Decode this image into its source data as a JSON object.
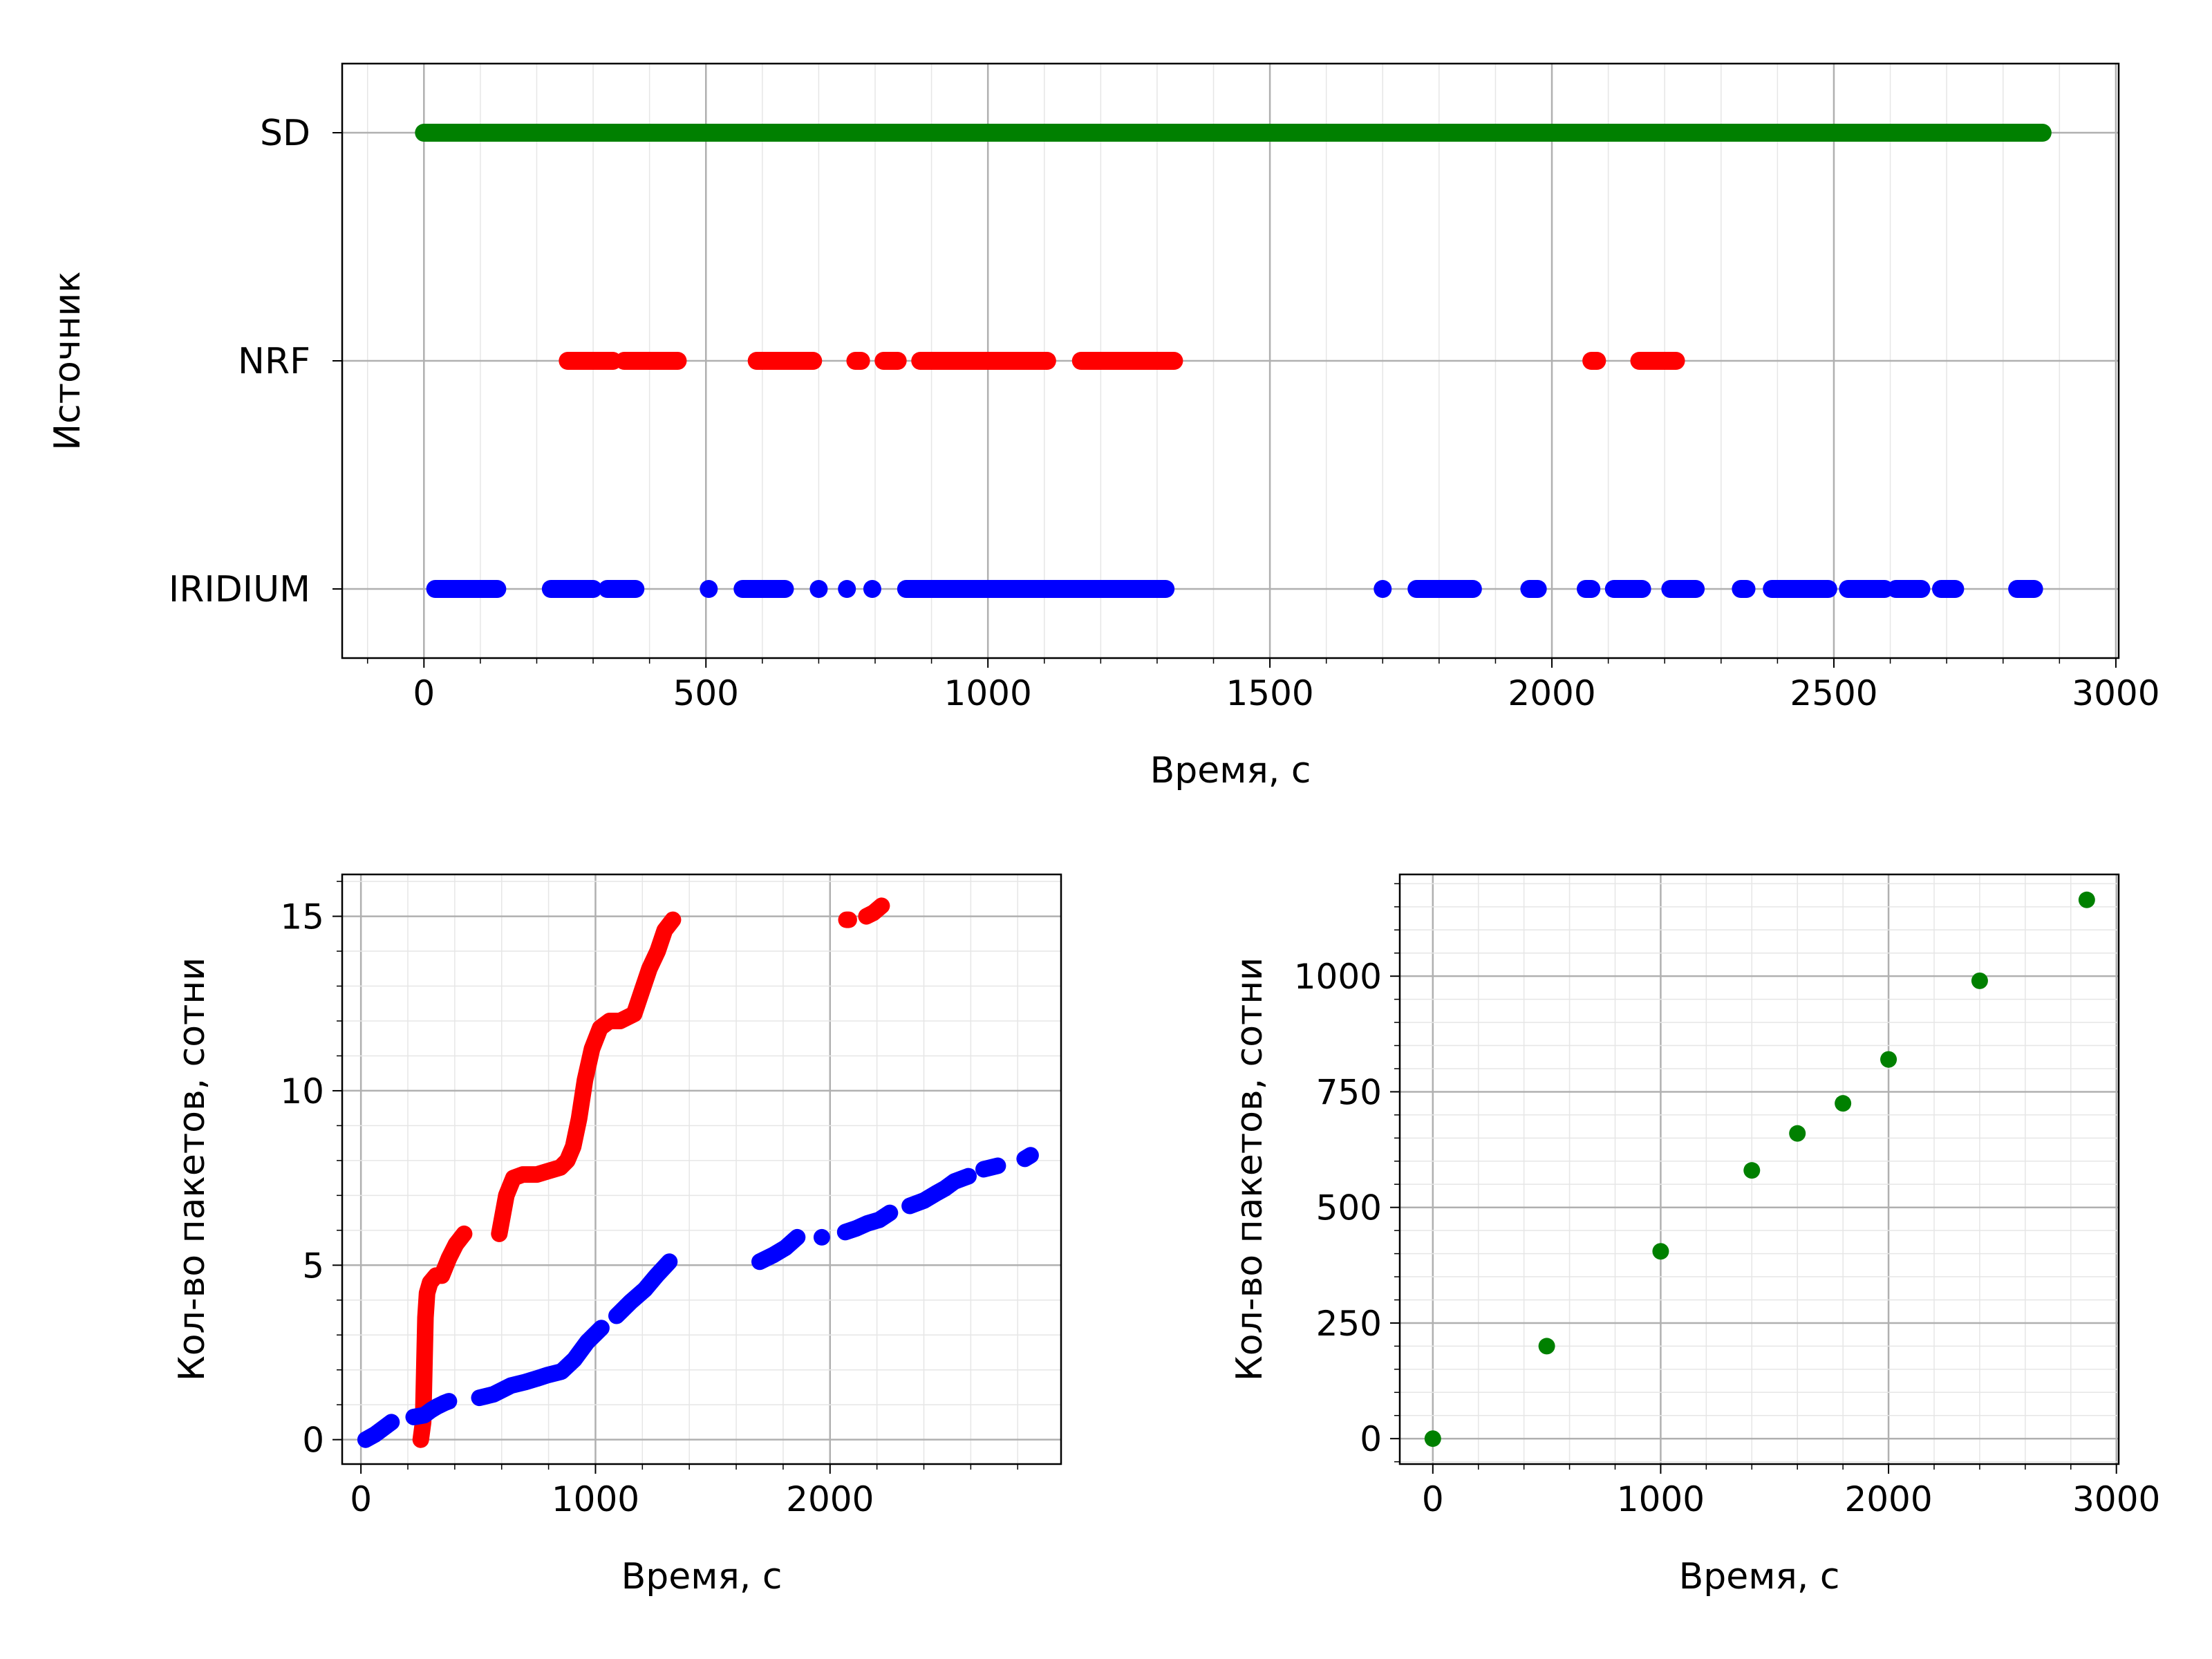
{
  "colors": {
    "sd": "#008000",
    "nrf": "#ff0000",
    "iridium": "#0000ff",
    "grid_major": "#b0b0b0",
    "grid_minor": "#e6e6e6"
  },
  "chart_data": [
    {
      "type": "scatter",
      "xlabel": "Время, с",
      "ylabel": "Источник",
      "xlim": [
        -145,
        3005
      ],
      "xticks": [
        0,
        500,
        1000,
        1500,
        2000,
        2500,
        3000
      ],
      "categories": [
        "IRIDIUM",
        "NRF",
        "SD"
      ],
      "grid": "major+minor",
      "series": [
        {
          "name": "SD",
          "color": "#008000",
          "category": "SD",
          "segments": [
            [
              0,
              2870
            ]
          ]
        },
        {
          "name": "NRF",
          "color": "#ff0000",
          "category": "NRF",
          "segments": [
            [
              255,
              335
            ],
            [
              355,
              450
            ],
            [
              590,
              690
            ],
            [
              765,
              775
            ],
            [
              815,
              840
            ],
            [
              880,
              1105
            ],
            [
              1165,
              1330
            ],
            [
              2070,
              2080
            ],
            [
              2155,
              2220
            ]
          ]
        },
        {
          "name": "IRIDIUM",
          "color": "#0000ff",
          "category": "IRIDIUM",
          "segments": [
            [
              20,
              130
            ],
            [
              225,
              300
            ],
            [
              325,
              375
            ],
            [
              505,
              505
            ],
            [
              565,
              640
            ],
            [
              700,
              700
            ],
            [
              750,
              750
            ],
            [
              795,
              795
            ],
            [
              855,
              1315
            ],
            [
              1700,
              1700
            ],
            [
              1760,
              1860
            ],
            [
              1960,
              1975
            ],
            [
              2060,
              2070
            ],
            [
              2110,
              2160
            ],
            [
              2210,
              2255
            ],
            [
              2335,
              2345
            ],
            [
              2390,
              2490
            ],
            [
              2525,
              2590
            ],
            [
              2610,
              2655
            ],
            [
              2690,
              2715
            ],
            [
              2825,
              2855
            ]
          ]
        }
      ]
    },
    {
      "type": "scatter",
      "xlabel": "Время, с",
      "ylabel": "Кол-во пакетов, сотни",
      "xlim": [
        -80,
        2985
      ],
      "ylim": [
        -0.7,
        16.2
      ],
      "xticks": [
        0,
        1000,
        2000
      ],
      "yticks": [
        0,
        5,
        10,
        15
      ],
      "grid": "major+minor",
      "series": [
        {
          "name": "NRF",
          "color": "#ff0000",
          "points": [
            [
              255,
              0
            ],
            [
              265,
              0.5
            ],
            [
              270,
              2.0
            ],
            [
              275,
              3.5
            ],
            [
              282,
              4.2
            ],
            [
              295,
              4.5
            ],
            [
              320,
              4.7
            ],
            [
              345,
              4.7
            ],
            [
              375,
              5.2
            ],
            [
              405,
              5.6
            ],
            [
              440,
              5.9
            ],
            [
              590,
              5.9
            ],
            [
              620,
              7.0
            ],
            [
              650,
              7.5
            ],
            [
              690,
              7.6
            ],
            [
              750,
              7.6
            ],
            [
              800,
              7.7
            ],
            [
              850,
              7.8
            ],
            [
              880,
              8.0
            ],
            [
              905,
              8.4
            ],
            [
              930,
              9.2
            ],
            [
              955,
              10.3
            ],
            [
              985,
              11.2
            ],
            [
              1020,
              11.8
            ],
            [
              1060,
              12.0
            ],
            [
              1105,
              12.0
            ],
            [
              1165,
              12.2
            ],
            [
              1195,
              12.8
            ],
            [
              1230,
              13.5
            ],
            [
              1265,
              14.0
            ],
            [
              1295,
              14.6
            ],
            [
              1330,
              14.9
            ],
            [
              2070,
              14.9
            ],
            [
              2080,
              14.9
            ],
            [
              2155,
              15.0
            ],
            [
              2185,
              15.1
            ],
            [
              2220,
              15.3
            ]
          ]
        },
        {
          "name": "IRIDIUM",
          "color": "#0000ff",
          "points": [
            [
              20,
              0
            ],
            [
              60,
              0.15
            ],
            [
              100,
              0.35
            ],
            [
              130,
              0.5
            ],
            [
              225,
              0.65
            ],
            [
              270,
              0.7
            ],
            [
              300,
              0.85
            ],
            [
              325,
              0.95
            ],
            [
              355,
              1.05
            ],
            [
              375,
              1.1
            ],
            [
              505,
              1.2
            ],
            [
              565,
              1.3
            ],
            [
              610,
              1.45
            ],
            [
              640,
              1.55
            ],
            [
              700,
              1.65
            ],
            [
              750,
              1.75
            ],
            [
              795,
              1.85
            ],
            [
              855,
              1.95
            ],
            [
              910,
              2.3
            ],
            [
              965,
              2.8
            ],
            [
              1025,
              3.2
            ],
            [
              1090,
              3.55
            ],
            [
              1150,
              3.95
            ],
            [
              1210,
              4.3
            ],
            [
              1260,
              4.7
            ],
            [
              1315,
              5.1
            ],
            [
              1700,
              5.1
            ],
            [
              1760,
              5.3
            ],
            [
              1810,
              5.5
            ],
            [
              1860,
              5.8
            ],
            [
              1965,
              5.8
            ],
            [
              2065,
              5.95
            ],
            [
              2110,
              6.05
            ],
            [
              2160,
              6.2
            ],
            [
              2210,
              6.3
            ],
            [
              2255,
              6.5
            ],
            [
              2340,
              6.7
            ],
            [
              2400,
              6.85
            ],
            [
              2450,
              7.05
            ],
            [
              2490,
              7.2
            ],
            [
              2530,
              7.4
            ],
            [
              2590,
              7.55
            ],
            [
              2655,
              7.75
            ],
            [
              2715,
              7.85
            ],
            [
              2830,
              8.05
            ],
            [
              2855,
              8.15
            ]
          ]
        }
      ]
    },
    {
      "type": "scatter",
      "xlabel": "Время, с",
      "ylabel": "Кол-во пакетов, сотни",
      "xlim": [
        -145,
        3010
      ],
      "ylim": [
        -55,
        1220
      ],
      "xticks": [
        0,
        1000,
        2000,
        3000
      ],
      "yticks": [
        0,
        250,
        500,
        750,
        1000
      ],
      "grid": "major+minor",
      "series": [
        {
          "name": "SD",
          "color": "#008000",
          "points": [
            [
              0,
              0
            ],
            [
              500,
              200
            ],
            [
              1000,
              405
            ],
            [
              1400,
              580
            ],
            [
              1600,
              660
            ],
            [
              1800,
              725
            ],
            [
              2000,
              820
            ],
            [
              2400,
              990
            ],
            [
              2870,
              1165
            ]
          ]
        }
      ]
    }
  ]
}
